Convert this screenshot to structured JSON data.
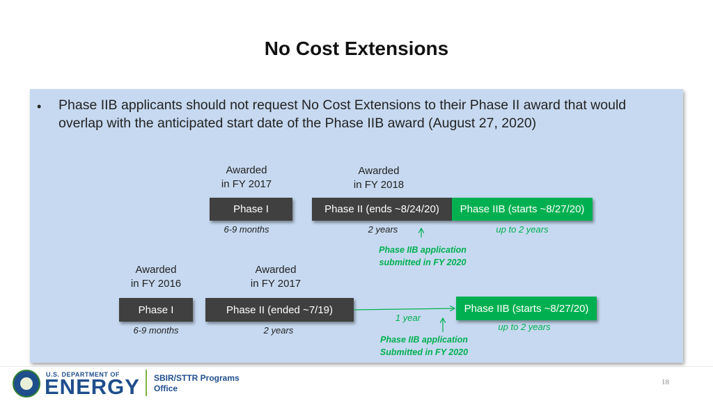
{
  "title": "No Cost Extensions",
  "bullet": {
    "marker": "•",
    "line1": "Phase IIB applicants should not request No Cost Extensions to their Phase II award that would",
    "line2": "overlap with the anticipated start date of the Phase IIB award  (August 27, 2020)"
  },
  "row1": {
    "awarded_a": {
      "line1": "Awarded",
      "line2": "in FY 2017"
    },
    "awarded_b": {
      "line1": "Awarded",
      "line2": "in FY 2018"
    },
    "phase1": "Phase I",
    "phase2": "Phase II (ends ~8/24/20)",
    "phase2b": "Phase IIB (starts ~8/27/20)",
    "dur1": "6-9 months",
    "dur2": "2 years",
    "dur3": "up to 2 years",
    "note_line1": "Phase IIB application",
    "note_line2": "submitted in FY 2020"
  },
  "row2": {
    "awarded_a": {
      "line1": "Awarded",
      "line2": "in FY 2016"
    },
    "awarded_b": {
      "line1": "Awarded",
      "line2": "in FY 2017"
    },
    "phase1": "Phase I",
    "phase2": "Phase II (ended ~7/19)",
    "phase2b": "Phase IIB (starts ~8/27/20)",
    "dur1": "6-9 months",
    "dur2": "2 years",
    "gap": "1 year",
    "dur3": "up to 2 years",
    "note_line1": "Phase IIB application",
    "note_line2": "Submitted in FY 2020"
  },
  "footer": {
    "logo_top": "U.S. DEPARTMENT OF",
    "logo_main": "ENERGY",
    "office_line1": "SBIR/STTR Programs",
    "office_line2": "Office",
    "page_number": "18"
  },
  "colors": {
    "panel": "#c6d9f0",
    "dark_box": "#404040",
    "green": "#00b050",
    "doe_blue": "#1f4e8c"
  }
}
